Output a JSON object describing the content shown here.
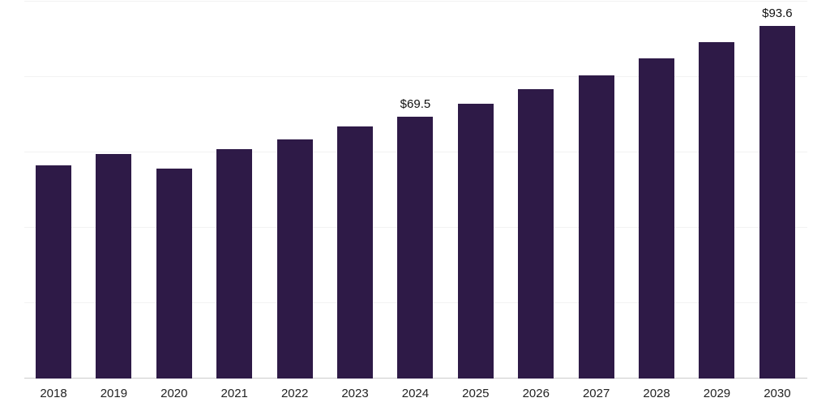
{
  "chart_data": {
    "type": "bar",
    "categories": [
      "2018",
      "2019",
      "2020",
      "2021",
      "2022",
      "2023",
      "2024",
      "2025",
      "2026",
      "2027",
      "2028",
      "2029",
      "2030"
    ],
    "values": [
      56.5,
      59.6,
      55.8,
      60.8,
      63.4,
      66.8,
      69.5,
      73.0,
      76.7,
      80.5,
      85.0,
      89.3,
      93.6
    ],
    "annotations": [
      {
        "category": "2024",
        "text": "$69.5"
      },
      {
        "category": "2030",
        "text": "$93.6"
      }
    ],
    "bar_color": "#2e1a47",
    "axis_line_color": "#cccccc",
    "gridline_color": "#f2f2f2",
    "gridline_values": [
      20,
      40,
      60,
      80,
      100
    ],
    "ylim": [
      0,
      100
    ],
    "grid": "horizontal-faint",
    "legend": "none"
  }
}
